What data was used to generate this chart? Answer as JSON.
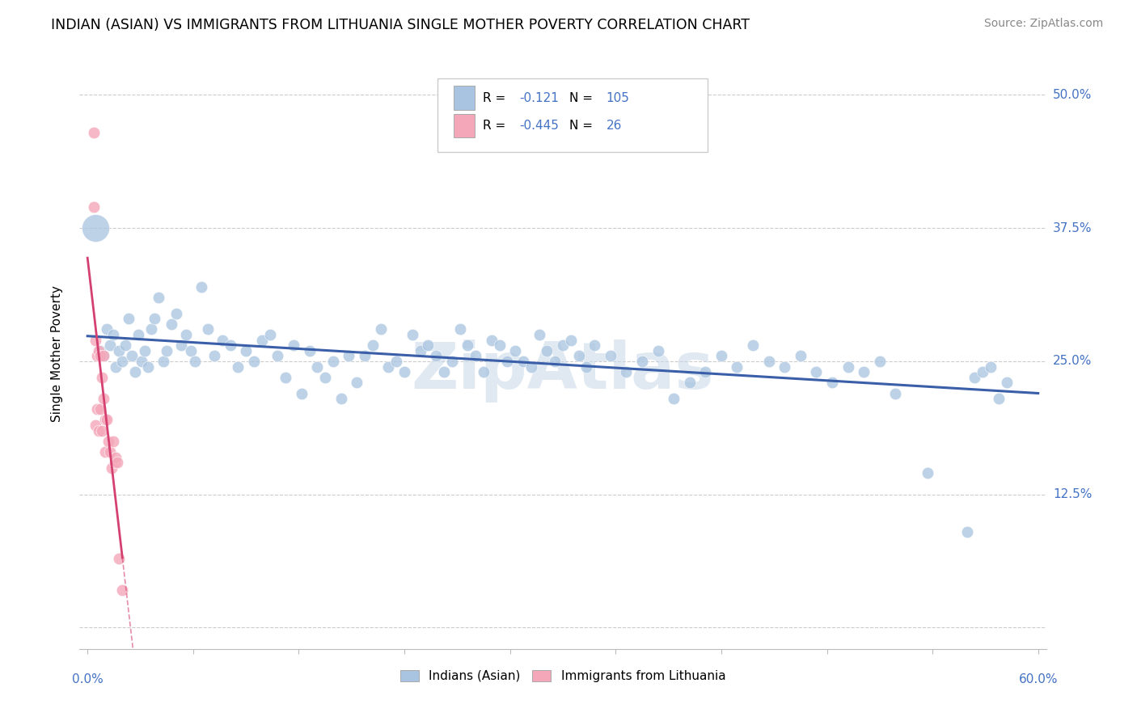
{
  "title": "INDIAN (ASIAN) VS IMMIGRANTS FROM LITHUANIA SINGLE MOTHER POVERTY CORRELATION CHART",
  "source": "Source: ZipAtlas.com",
  "ylabel": "Single Mother Poverty",
  "r_blue": -0.121,
  "n_blue": 105,
  "r_pink": -0.445,
  "n_pink": 26,
  "blue_color": "#a8c4e0",
  "pink_color": "#f4a7b9",
  "trend_blue_color": "#3a5fa8",
  "trend_pink_color": "#d44070",
  "legend_label_blue": "Indians (Asian)",
  "legend_label_pink": "Immigrants from Lithuania",
  "blue_label_color": "#4472c4",
  "watermark": "ZipAtlas",
  "blue_points_x": [
    0.005,
    0.008,
    0.01,
    0.012,
    0.014,
    0.016,
    0.018,
    0.02,
    0.022,
    0.024,
    0.026,
    0.028,
    0.03,
    0.032,
    0.034,
    0.036,
    0.038,
    0.04,
    0.042,
    0.045,
    0.048,
    0.05,
    0.053,
    0.056,
    0.059,
    0.062,
    0.065,
    0.068,
    0.072,
    0.076,
    0.08,
    0.085,
    0.09,
    0.095,
    0.1,
    0.105,
    0.11,
    0.115,
    0.12,
    0.125,
    0.13,
    0.135,
    0.14,
    0.145,
    0.15,
    0.155,
    0.16,
    0.165,
    0.17,
    0.175,
    0.18,
    0.185,
    0.19,
    0.195,
    0.2,
    0.205,
    0.21,
    0.215,
    0.22,
    0.225,
    0.23,
    0.235,
    0.24,
    0.245,
    0.25,
    0.255,
    0.26,
    0.265,
    0.27,
    0.275,
    0.28,
    0.285,
    0.29,
    0.295,
    0.3,
    0.305,
    0.31,
    0.315,
    0.32,
    0.33,
    0.34,
    0.35,
    0.36,
    0.37,
    0.38,
    0.39,
    0.4,
    0.41,
    0.42,
    0.43,
    0.44,
    0.45,
    0.46,
    0.47,
    0.48,
    0.49,
    0.5,
    0.51,
    0.53,
    0.555,
    0.56,
    0.565,
    0.57,
    0.575,
    0.58
  ],
  "blue_points_y": [
    0.375,
    0.26,
    0.255,
    0.28,
    0.265,
    0.275,
    0.245,
    0.26,
    0.25,
    0.265,
    0.29,
    0.255,
    0.24,
    0.275,
    0.25,
    0.26,
    0.245,
    0.28,
    0.29,
    0.31,
    0.25,
    0.26,
    0.285,
    0.295,
    0.265,
    0.275,
    0.26,
    0.25,
    0.32,
    0.28,
    0.255,
    0.27,
    0.265,
    0.245,
    0.26,
    0.25,
    0.27,
    0.275,
    0.255,
    0.235,
    0.265,
    0.22,
    0.26,
    0.245,
    0.235,
    0.25,
    0.215,
    0.255,
    0.23,
    0.255,
    0.265,
    0.28,
    0.245,
    0.25,
    0.24,
    0.275,
    0.26,
    0.265,
    0.255,
    0.24,
    0.25,
    0.28,
    0.265,
    0.255,
    0.24,
    0.27,
    0.265,
    0.25,
    0.26,
    0.25,
    0.245,
    0.275,
    0.26,
    0.25,
    0.265,
    0.27,
    0.255,
    0.245,
    0.265,
    0.255,
    0.24,
    0.25,
    0.26,
    0.215,
    0.23,
    0.24,
    0.255,
    0.245,
    0.265,
    0.25,
    0.245,
    0.255,
    0.24,
    0.23,
    0.245,
    0.24,
    0.25,
    0.22,
    0.145,
    0.09,
    0.235,
    0.24,
    0.245,
    0.215,
    0.23
  ],
  "pink_points_x": [
    0.004,
    0.004,
    0.005,
    0.005,
    0.006,
    0.006,
    0.007,
    0.007,
    0.008,
    0.008,
    0.009,
    0.009,
    0.01,
    0.01,
    0.011,
    0.011,
    0.012,
    0.013,
    0.014,
    0.015,
    0.016,
    0.017,
    0.018,
    0.019,
    0.02,
    0.022
  ],
  "pink_points_y": [
    0.465,
    0.395,
    0.27,
    0.19,
    0.255,
    0.205,
    0.26,
    0.185,
    0.255,
    0.205,
    0.235,
    0.185,
    0.255,
    0.215,
    0.195,
    0.165,
    0.195,
    0.175,
    0.165,
    0.15,
    0.175,
    0.155,
    0.16,
    0.155,
    0.065,
    0.035
  ]
}
